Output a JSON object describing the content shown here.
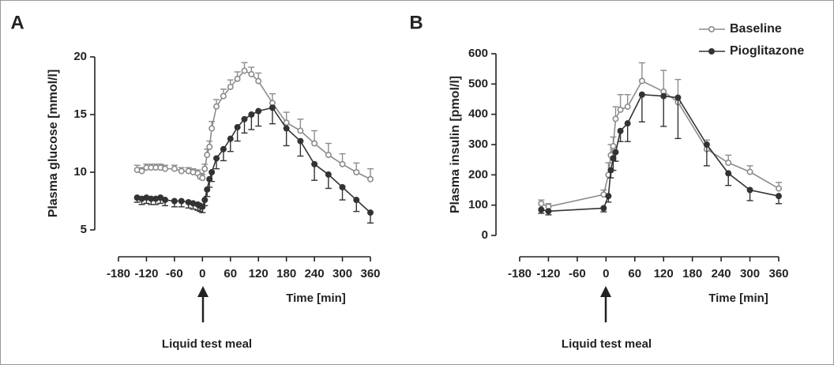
{
  "chart_data": [
    {
      "type": "line",
      "panel_label": "A",
      "y_label": "Plasma glucose [mmol/l]",
      "x_label": "Time [min]",
      "annotation": "Liquid test meal",
      "x": [
        -140,
        -130,
        -120,
        -110,
        -100,
        -90,
        -80,
        -60,
        -45,
        -30,
        -20,
        -10,
        -5,
        0,
        5,
        10,
        15,
        20,
        30,
        45,
        60,
        75,
        90,
        105,
        120,
        150,
        180,
        210,
        240,
        270,
        300,
        330,
        360
      ],
      "xlim": [
        -180,
        360
      ],
      "xticks": [
        -180,
        -120,
        -60,
        0,
        60,
        120,
        180,
        240,
        300,
        360
      ],
      "ylim": [
        5,
        20
      ],
      "yticks": [
        5,
        10,
        15,
        20
      ],
      "series": [
        {
          "name": "Baseline",
          "color": "#8c8c8c",
          "marker_fill": "#ffffff",
          "error_direction": "up",
          "values": [
            10.2,
            10.1,
            10.4,
            10.4,
            10.4,
            10.4,
            10.3,
            10.3,
            10.1,
            10.1,
            10.0,
            9.9,
            9.6,
            9.5,
            10.3,
            11.5,
            12.2,
            13.8,
            15.7,
            16.6,
            17.4,
            18.1,
            18.8,
            18.5,
            17.9,
            16.0,
            14.3,
            13.6,
            12.5,
            11.5,
            10.7,
            10.0,
            9.4
          ],
          "errors": [
            0.4,
            0.3,
            0.3,
            0.3,
            0.3,
            0.3,
            0.3,
            0.3,
            0.3,
            0.3,
            0.3,
            0.3,
            0.3,
            0.3,
            0.4,
            0.5,
            0.5,
            0.6,
            0.6,
            0.6,
            0.6,
            0.6,
            0.7,
            0.6,
            0.7,
            0.8,
            0.9,
            1.0,
            1.1,
            1.0,
            0.9,
            0.8,
            0.9
          ]
        },
        {
          "name": "Pioglitazone",
          "color": "#333333",
          "marker_fill": "#333333",
          "error_direction": "down",
          "values": [
            7.8,
            7.7,
            7.8,
            7.7,
            7.7,
            7.8,
            7.6,
            7.5,
            7.5,
            7.4,
            7.3,
            7.2,
            7.1,
            7.0,
            7.6,
            8.5,
            9.4,
            10.0,
            11.2,
            12.0,
            12.9,
            13.9,
            14.6,
            15.0,
            15.3,
            15.6,
            13.8,
            12.7,
            10.7,
            9.8,
            8.7,
            7.6,
            6.5
          ],
          "errors": [
            0.4,
            0.5,
            0.5,
            0.5,
            0.5,
            0.5,
            0.5,
            0.5,
            0.5,
            0.5,
            0.5,
            0.5,
            0.5,
            0.5,
            0.5,
            0.6,
            0.7,
            0.8,
            0.9,
            1.0,
            1.1,
            1.2,
            1.2,
            1.3,
            1.3,
            1.4,
            1.5,
            1.3,
            1.4,
            1.2,
            1.1,
            1.0,
            0.9
          ]
        }
      ]
    },
    {
      "type": "line",
      "panel_label": "B",
      "y_label": "Plasma insulin [pmol/l]",
      "x_label": "Time [min]",
      "annotation": "Liquid test meal",
      "legend": "upper right",
      "x": [
        -135,
        -120,
        -5,
        5,
        10,
        15,
        20,
        30,
        45,
        75,
        120,
        150,
        210,
        255,
        300,
        360
      ],
      "xlim": [
        -180,
        360
      ],
      "xticks": [
        -180,
        -120,
        -60,
        0,
        60,
        120,
        180,
        240,
        300,
        360
      ],
      "ylim": [
        0,
        600
      ],
      "yticks": [
        0,
        100,
        200,
        300,
        400,
        500,
        600
      ],
      "series": [
        {
          "name": "Baseline",
          "color": "#8c8c8c",
          "marker_fill": "#ffffff",
          "error_direction": "up",
          "values": [
            105,
            95,
            135,
            200,
            265,
            295,
            385,
            415,
            425,
            510,
            475,
            440,
            285,
            240,
            210,
            155
          ],
          "errors": [
            12,
            10,
            15,
            40,
            35,
            30,
            40,
            50,
            40,
            60,
            70,
            75,
            30,
            25,
            20,
            20
          ]
        },
        {
          "name": "Pioglitazone",
          "color": "#333333",
          "marker_fill": "#333333",
          "error_direction": "down",
          "values": [
            85,
            80,
            90,
            130,
            215,
            255,
            275,
            345,
            370,
            465,
            460,
            455,
            300,
            205,
            150,
            130
          ],
          "errors": [
            12,
            12,
            12,
            20,
            25,
            40,
            30,
            35,
            60,
            90,
            100,
            135,
            70,
            40,
            35,
            25
          ]
        }
      ]
    }
  ]
}
